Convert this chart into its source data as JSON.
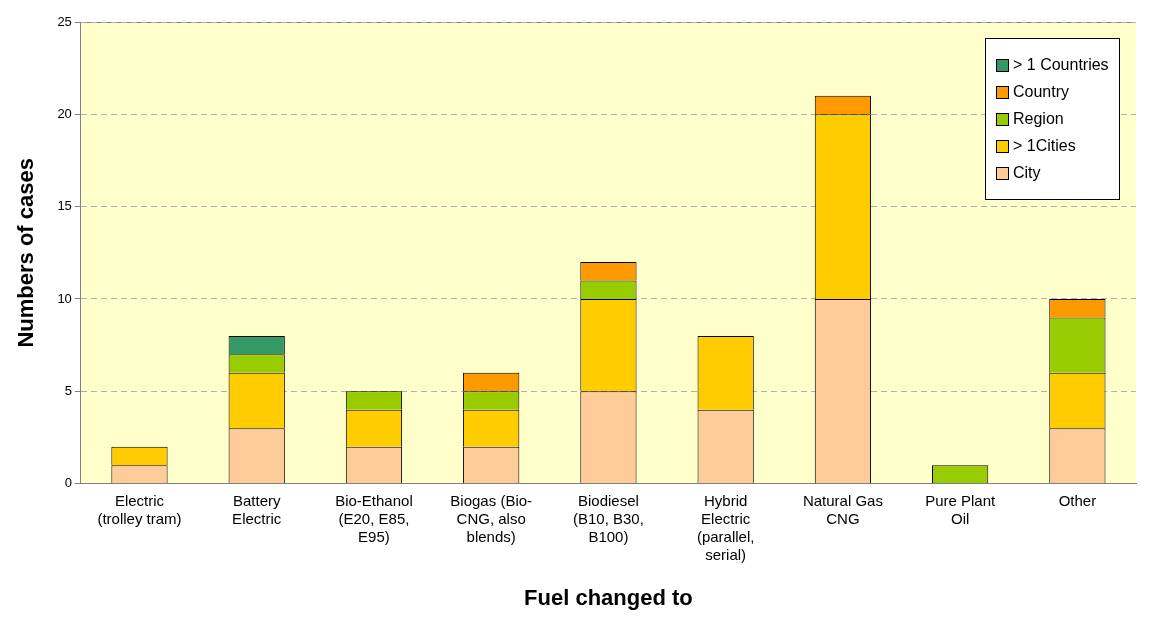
{
  "chart_data": {
    "type": "bar",
    "stacked": true,
    "xlabel": "Fuel changed to",
    "ylabel": "Numbers of cases",
    "categories": [
      "Electric\n(trolley tram)",
      "Battery\nElectric",
      "Bio-Ethanol\n(E20, E85,\nE95)",
      "Biogas (Bio-\nCNG, also\nblends)",
      "Biodiesel\n(B10, B30,\nB100)",
      "Hybrid\nElectric\n(parallel,\nserial)",
      "Natural Gas\nCNG",
      "Pure Plant\nOil",
      "Other"
    ],
    "series": [
      {
        "name": "City",
        "color": "#ffcc99",
        "values": [
          1,
          3,
          2,
          2,
          5,
          4,
          10,
          0,
          3
        ]
      },
      {
        "name": "> 1Cities",
        "color": "#ffcc00",
        "values": [
          1,
          3,
          2,
          2,
          5,
          4,
          10,
          0,
          3
        ]
      },
      {
        "name": "Region",
        "color": "#99cc00",
        "values": [
          0,
          1,
          1,
          1,
          1,
          0,
          0,
          1,
          3
        ]
      },
      {
        "name": "Country",
        "color": "#ff9900",
        "values": [
          0,
          0,
          0,
          1,
          1,
          0,
          1,
          0,
          1
        ]
      },
      {
        "name": "> 1 Countries",
        "color": "#339966",
        "values": [
          0,
          1,
          0,
          0,
          0,
          0,
          0,
          0,
          0
        ]
      }
    ],
    "ylim": [
      0,
      25
    ],
    "yticks": [
      0,
      5,
      10,
      15,
      20,
      25
    ],
    "grid": "y",
    "legend": "top right"
  }
}
